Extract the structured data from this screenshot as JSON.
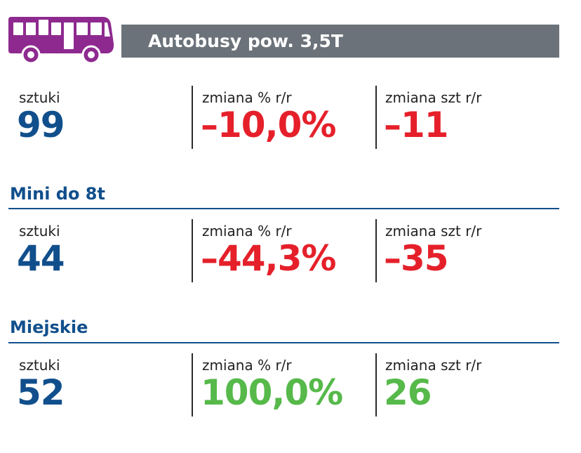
{
  "header": {
    "title": "Autobusy pow. 3,5T",
    "icon": "bus-icon",
    "icon_color": "#8e2a8f"
  },
  "colors": {
    "blue": "#114f8c",
    "red": "#e5202a",
    "green": "#56b94a",
    "title_bar": "#6b7279"
  },
  "sections": [
    {
      "title": "",
      "units_label": "sztuki",
      "units_value": "99",
      "pct_label": "zmiana % r/r",
      "pct_value": "–10,0%",
      "abs_label": "zmiana szt r/r",
      "abs_value": "–11"
    },
    {
      "title": "Mini do 8t",
      "units_label": "sztuki",
      "units_value": "44",
      "pct_label": "zmiana % r/r",
      "pct_value": "–44,3%",
      "abs_label": "zmiana szt r/r",
      "abs_value": "–35"
    },
    {
      "title": "Miejskie",
      "units_label": "sztuki",
      "units_value": "52",
      "pct_label": "zmiana % r/r",
      "pct_value": "100,0%",
      "abs_label": "zmiana szt r/r",
      "abs_value": "26"
    }
  ]
}
